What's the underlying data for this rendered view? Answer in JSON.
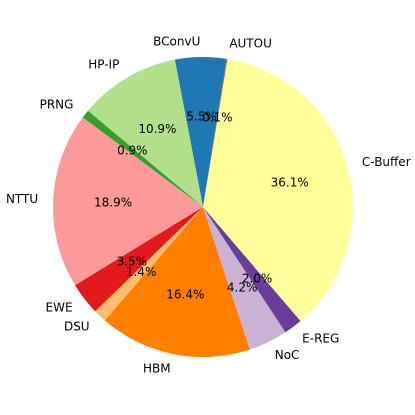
{
  "chart_data": {
    "type": "pie",
    "categories": [
      "BConvU",
      "HP-IP",
      "PRNG",
      "NTTU",
      "EWE",
      "DSU",
      "HBM",
      "NoC",
      "E-REG",
      "C-Buffer",
      "AUTOU"
    ],
    "values": [
      5.5,
      10.9,
      0.9,
      18.9,
      3.5,
      1.4,
      16.4,
      4.2,
      2.0,
      36.1,
      0.1
    ],
    "value_labels": [
      "5.5%",
      "10.9%",
      "0.9%",
      "18.9%",
      "3.5%",
      "1.4%",
      "16.4%",
      "4.2%",
      "2.0%",
      "36.1%",
      "0.1%"
    ],
    "colors": [
      "#1f78b4",
      "#b2df8a",
      "#33a02c",
      "#fb9a99",
      "#e31a1c",
      "#fdbf6f",
      "#ff7f00",
      "#cab2d6",
      "#6a3d9a",
      "#ffff99",
      "#b15928"
    ]
  }
}
